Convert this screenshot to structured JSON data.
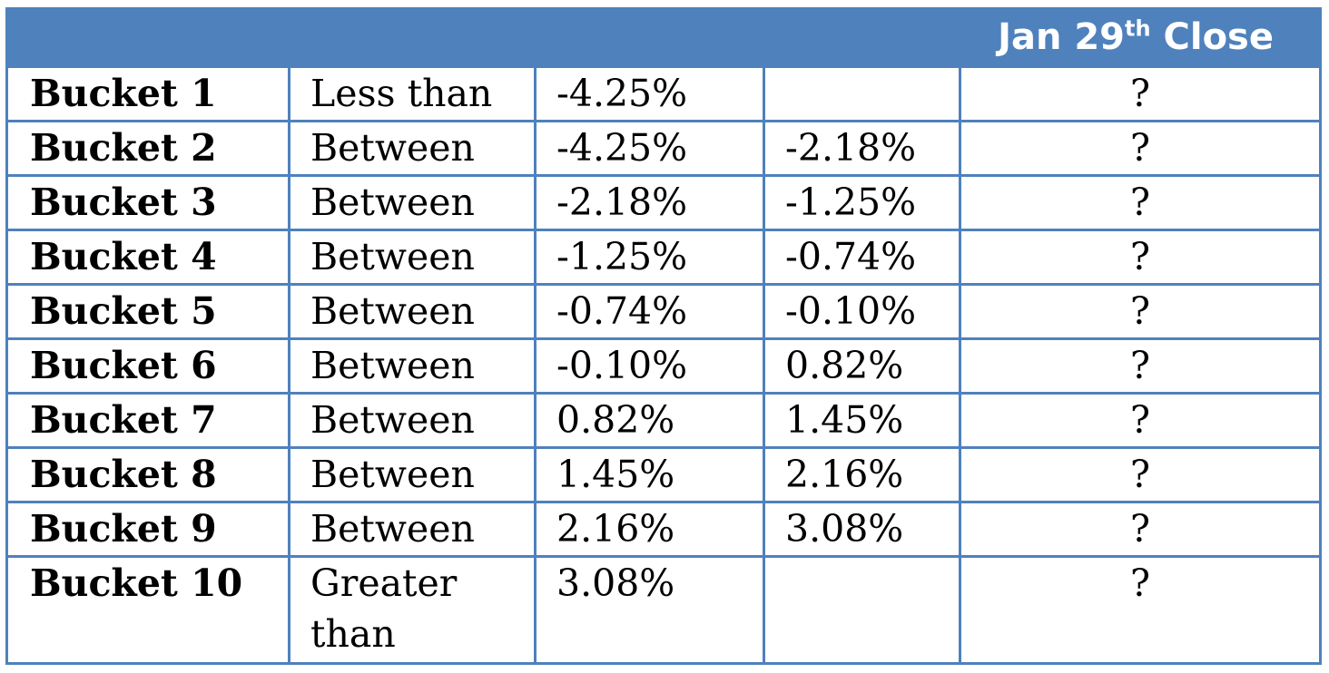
{
  "header": {
    "title_main": "Jan 29",
    "title_sup": "th",
    "title_tail": " Close"
  },
  "rows": [
    {
      "name": "Bucket 1",
      "relation": "Less than",
      "low": "-4.25%",
      "high": "",
      "result": "?"
    },
    {
      "name": "Bucket  2",
      "relation": "Between",
      "low": "-4.25%",
      "high": "-2.18%",
      "result": "?"
    },
    {
      "name": "Bucket  3",
      "relation": "Between",
      "low": "-2.18%",
      "high": "-1.25%",
      "result": "?"
    },
    {
      "name": "Bucket  4",
      "relation": "Between",
      "low": "-1.25%",
      "high": "-0.74%",
      "result": "?"
    },
    {
      "name": "Bucket  5",
      "relation": "Between",
      "low": "-0.74%",
      "high": "-0.10%",
      "result": "?"
    },
    {
      "name": "Bucket  6",
      "relation": "Between",
      "low": "-0.10%",
      "high": "0.82%",
      "result": "?"
    },
    {
      "name": "Bucket  7",
      "relation": "Between",
      "low": "0.82%",
      "high": "1.45%",
      "result": "?"
    },
    {
      "name": "Bucket  8",
      "relation": "Between",
      "low": "1.45%",
      "high": "2.16%",
      "result": "?"
    },
    {
      "name": "Bucket  9",
      "relation": "Between",
      "low": "2.16%",
      "high": "3.08%",
      "result": "?"
    },
    {
      "name": "Bucket  10",
      "relation": "Greater than",
      "low": "3.08%",
      "high": "",
      "result": "?"
    }
  ],
  "colors": {
    "header_bg": "#4f81bd",
    "border": "#4f81bd",
    "header_text": "#ffffff"
  }
}
